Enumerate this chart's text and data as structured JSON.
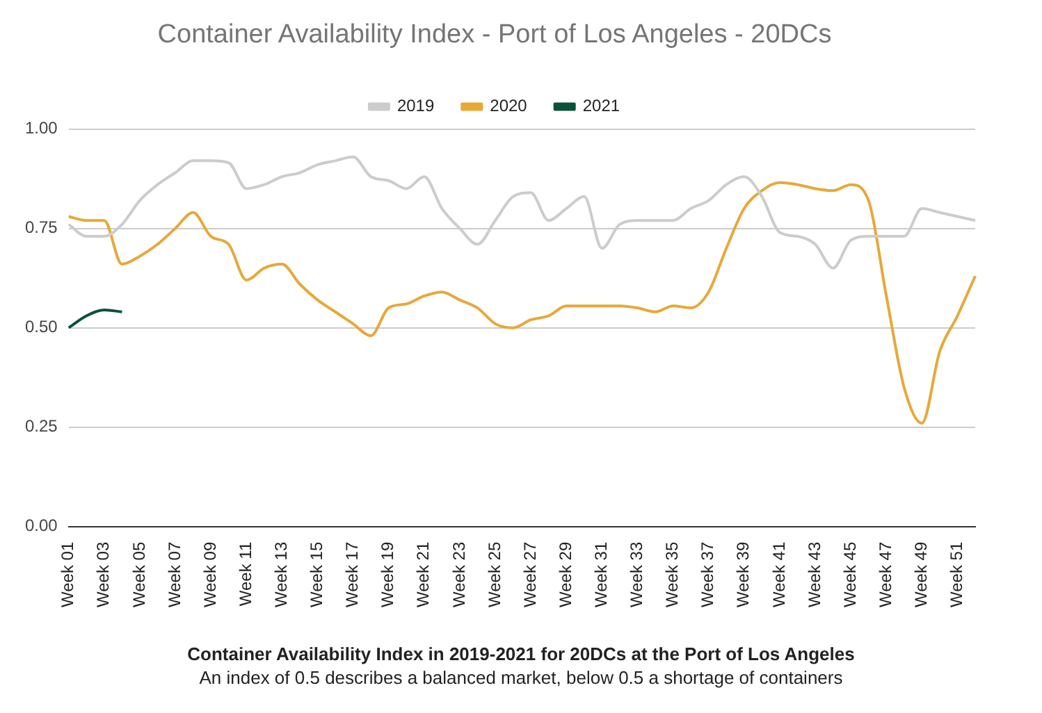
{
  "chart_data": {
    "type": "line",
    "title": "Container Availability Index - Port of Los Angeles - 20DCs",
    "categories": [
      "Week 01",
      null,
      "Week 03",
      null,
      "Week 05",
      null,
      "Week 07",
      null,
      "Week 09",
      null,
      "Week 11",
      null,
      "Week 13",
      null,
      "Week 15",
      null,
      "Week 17",
      null,
      "Week 19",
      null,
      "Week 21",
      null,
      "Week 23",
      null,
      "Week 25",
      null,
      "Week 27",
      null,
      "Week 29",
      null,
      "Week 31",
      null,
      "Week 33",
      null,
      "Week 35",
      null,
      "Week 37",
      null,
      "Week 39",
      null,
      "Week 41",
      null,
      "Week 43",
      null,
      "Week 45",
      null,
      "Week 47",
      null,
      "Week 49",
      null,
      "Week 51",
      null
    ],
    "series": [
      {
        "name": "2019",
        "color": "#cccccc",
        "values": [
          0.76,
          0.73,
          0.73,
          0.76,
          0.82,
          0.86,
          0.89,
          0.92,
          0.92,
          0.915,
          0.85,
          0.86,
          0.88,
          0.89,
          0.91,
          0.92,
          0.93,
          0.88,
          0.87,
          0.85,
          0.88,
          0.8,
          0.75,
          0.71,
          0.77,
          0.83,
          0.84,
          0.77,
          0.8,
          0.83,
          0.7,
          0.76,
          0.77,
          0.77,
          0.77,
          0.8,
          0.82,
          0.86,
          0.88,
          0.83,
          0.74,
          0.73,
          0.71,
          0.65,
          0.72,
          0.73,
          0.73,
          0.73,
          0.8,
          0.79,
          0.78,
          0.77
        ]
      },
      {
        "name": "2020",
        "color": "#e8a838",
        "values": [
          0.78,
          0.77,
          0.77,
          0.66,
          0.68,
          0.71,
          0.75,
          0.79,
          0.73,
          0.71,
          0.62,
          0.65,
          0.66,
          0.61,
          0.57,
          0.54,
          0.51,
          0.48,
          0.55,
          0.56,
          0.58,
          0.59,
          0.57,
          0.55,
          0.51,
          0.5,
          0.52,
          0.53,
          0.555,
          0.555,
          0.555,
          0.555,
          0.55,
          0.54,
          0.555,
          0.55,
          0.59,
          0.7,
          0.8,
          0.845,
          0.865,
          0.86,
          0.85,
          0.845,
          0.86,
          0.82,
          0.58,
          0.35,
          0.26,
          0.44,
          0.53,
          0.63
        ]
      },
      {
        "name": "2021",
        "color": "#0b5239",
        "values": [
          0.5,
          0.53,
          0.545,
          0.54,
          null,
          null,
          null,
          null,
          null,
          null,
          null,
          null,
          null,
          null,
          null,
          null,
          null,
          null,
          null,
          null,
          null,
          null,
          null,
          null,
          null,
          null,
          null,
          null,
          null,
          null,
          null,
          null,
          null,
          null,
          null,
          null,
          null,
          null,
          null,
          null,
          null,
          null,
          null,
          null,
          null,
          null,
          null,
          null,
          null,
          null,
          null,
          null
        ]
      }
    ],
    "ylim": [
      0,
      1
    ],
    "yticks": [
      {
        "value": 0,
        "label": "0.00"
      },
      {
        "value": 0.25,
        "label": "0.25"
      },
      {
        "value": 0.5,
        "label": "0.50"
      },
      {
        "value": 0.75,
        "label": "0.75"
      },
      {
        "value": 1,
        "label": "1.00"
      }
    ],
    "grid": "y",
    "legend": "top",
    "marker": "none",
    "annotations": [
      "Container Availability Index in 2019-2021 for 20DCs at the Port of Los Angeles",
      "An index of 0.5 describes a balanced market, below 0.5 a shortage of containers"
    ]
  }
}
